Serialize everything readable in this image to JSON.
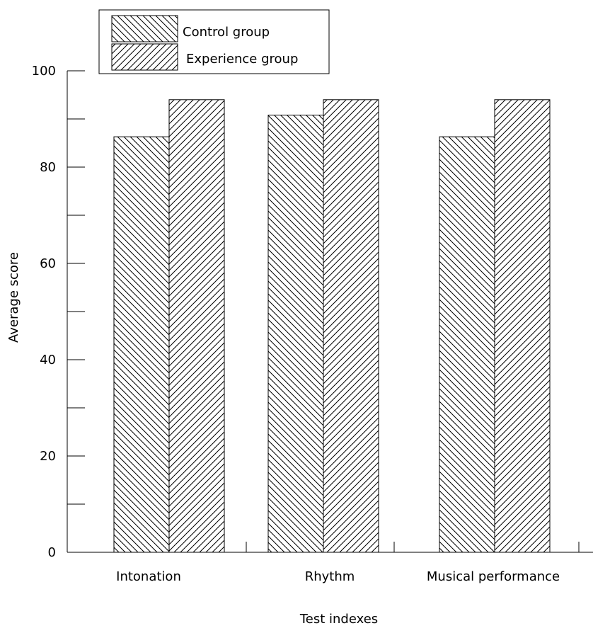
{
  "chart_data": {
    "type": "bar",
    "categories": [
      "Intonation",
      "Rhythm",
      "Musical performance"
    ],
    "series": [
      {
        "name": "Control group",
        "values": [
          86.3,
          90.8,
          86.3
        ],
        "pattern": "back-diagonal"
      },
      {
        "name": "Experience group",
        "values": [
          94.0,
          94.0,
          94.0
        ],
        "pattern": "forward-diagonal"
      }
    ],
    "xlabel": "Test indexes",
    "ylabel": "Average score",
    "ylim": [
      0,
      100
    ],
    "yticks": [
      0,
      20,
      40,
      60,
      80,
      100
    ],
    "yticks_minor": [
      10,
      30,
      50,
      70,
      90
    ],
    "grid": false,
    "legend_position": "top-left",
    "colors": {
      "fill": "#ffffff",
      "hatch": "#000000",
      "stroke": "#000000"
    }
  }
}
